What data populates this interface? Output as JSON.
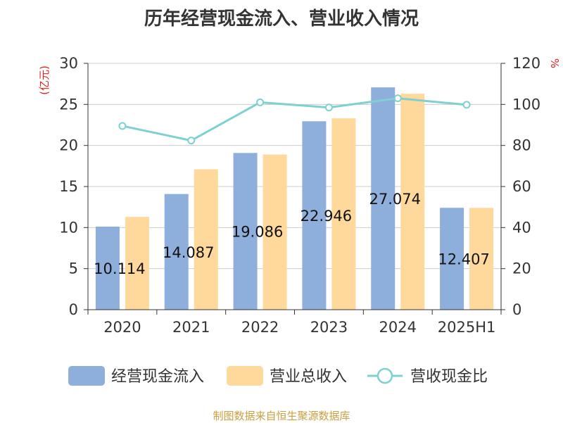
{
  "chart_data": {
    "type": "bar",
    "title": "历年经营现金流入、营业收入情况",
    "categories": [
      "2020",
      "2021",
      "2022",
      "2023",
      "2024",
      "2025H1"
    ],
    "y_left": {
      "label": "(亿元)",
      "range": [
        0,
        30
      ],
      "ticks": [
        0,
        5,
        10,
        15,
        20,
        25,
        30
      ]
    },
    "y_right": {
      "label": "%",
      "range": [
        0,
        120
      ],
      "ticks": [
        0,
        20,
        40,
        60,
        80,
        100,
        120
      ]
    },
    "series": [
      {
        "name": "经营现金流入",
        "type": "bar",
        "axis": "left",
        "color": "#8eaedb",
        "values": [
          10.114,
          14.087,
          19.086,
          22.946,
          27.074,
          12.407
        ],
        "data_labels": [
          "10.114",
          "14.087",
          "19.086",
          "22.946",
          "27.074",
          "12.407"
        ]
      },
      {
        "name": "营业总收入",
        "type": "bar",
        "axis": "left",
        "color": "#fed99b",
        "values": [
          11.3,
          17.1,
          18.9,
          23.3,
          26.3,
          12.4
        ]
      },
      {
        "name": "营收现金比",
        "type": "line",
        "axis": "right",
        "color": "#7fd1d1",
        "values": [
          89.5,
          82.4,
          101.0,
          98.5,
          103.0,
          99.8
        ]
      }
    ],
    "grid": true,
    "legend_position": "bottom"
  },
  "footer": {
    "source": "制图数据来自恒生聚源数据库"
  }
}
